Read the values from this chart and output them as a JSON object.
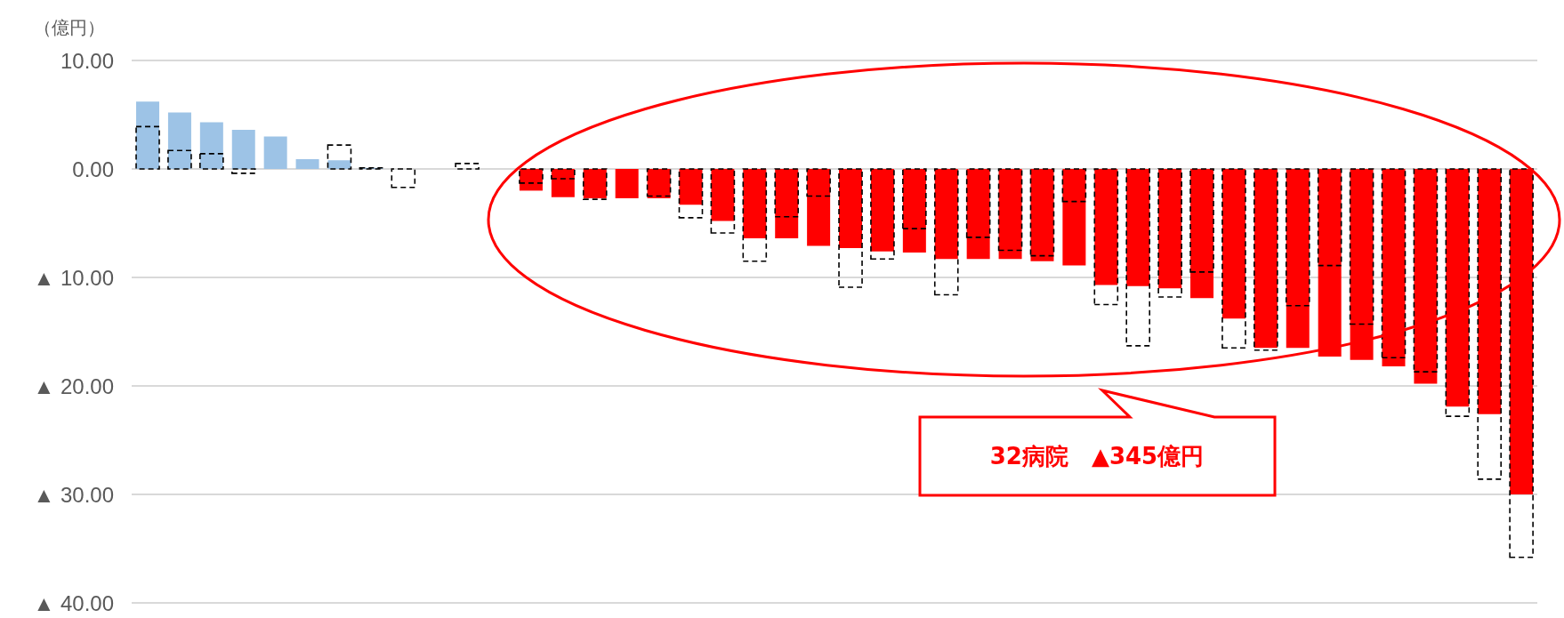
{
  "chart_data": {
    "type": "bar",
    "ylabel": "（億円）",
    "annotations": [
      "32病院　▲345億円"
    ],
    "categories": [
      null,
      null,
      null,
      null,
      null,
      null,
      null,
      null,
      null,
      null,
      null,
      null,
      null,
      null,
      null,
      null,
      null,
      null,
      null,
      null,
      null,
      null,
      null,
      null,
      null,
      null,
      null,
      null,
      null,
      null,
      null,
      null,
      null,
      null,
      null,
      null,
      null,
      null,
      null,
      null,
      null,
      null,
      null,
      null
    ],
    "series": [
      {
        "values": [
          6.2,
          5.2,
          4.3,
          3.6,
          3.0,
          0.9,
          0.8,
          0.1,
          0,
          null,
          null,
          null,
          -2.0,
          -2.6,
          -2.7,
          -2.7,
          -2.7,
          -3.3,
          -4.8,
          -6.4,
          -6.4,
          -7.1,
          -7.3,
          -7.6,
          -7.7,
          -8.3,
          -8.3,
          -8.3,
          -8.5,
          -8.9,
          -10.7,
          -10.8,
          -11.0,
          -11.9,
          -13.8,
          -16.5,
          -16.5,
          -17.3,
          -17.6,
          -18.2,
          -19.8,
          -21.9,
          -22.6,
          -30.0
        ],
        "colors": [
          "#9dc3e6",
          "#9dc3e6",
          "#9dc3e6",
          "#9dc3e6",
          "#9dc3e6",
          "#9dc3e6",
          "#9dc3e6",
          "#9dc3e6",
          "#9dc3e6",
          "#9dc3e6",
          "#9dc3e6",
          "#9dc3e6",
          "#ff0000",
          "#ff0000",
          "#ff0000",
          "#ff0000",
          "#ff0000",
          "#ff0000",
          "#ff0000",
          "#ff0000",
          "#ff0000",
          "#ff0000",
          "#ff0000",
          "#ff0000",
          "#ff0000",
          "#ff0000",
          "#ff0000",
          "#ff0000",
          "#ff0000",
          "#ff0000",
          "#ff0000",
          "#ff0000",
          "#ff0000",
          "#ff0000",
          "#ff0000",
          "#ff0000",
          "#ff0000",
          "#ff0000",
          "#ff0000",
          "#ff0000",
          "#ff0000",
          "#ff0000",
          "#ff0000",
          "#ff0000"
        ]
      },
      {
        "color": "#000000",
        "line_style": "dashed",
        "values": [
          3.9,
          1.7,
          1.4,
          -0.4,
          null,
          null,
          2.2,
          0.1,
          -1.7,
          null,
          0.5,
          null,
          -1.3,
          -0.9,
          -2.8,
          null,
          -2.5,
          -4.5,
          -5.9,
          -8.5,
          -4.4,
          -2.5,
          -10.9,
          -8.3,
          -5.5,
          -11.6,
          -6.3,
          -7.5,
          -8.0,
          -3.0,
          -12.5,
          -16.3,
          -11.8,
          -9.5,
          -16.5,
          -16.7,
          -12.6,
          -8.9,
          -14.3,
          -17.4,
          -18.7,
          -22.8,
          -28.6,
          -35.8
        ]
      }
    ],
    "ylim": [
      -40,
      10
    ],
    "yticks": [
      {
        "value": 10,
        "label": "10.00"
      },
      {
        "value": 0,
        "label": "0.00"
      },
      {
        "value": -10,
        "label": "▲ 10.00"
      },
      {
        "value": -20,
        "label": "▲ 20.00"
      },
      {
        "value": -30,
        "label": "▲ 30.00"
      },
      {
        "value": -40,
        "label": "▲ 40.00"
      }
    ],
    "grid": "y",
    "tick_labels": "y"
  }
}
